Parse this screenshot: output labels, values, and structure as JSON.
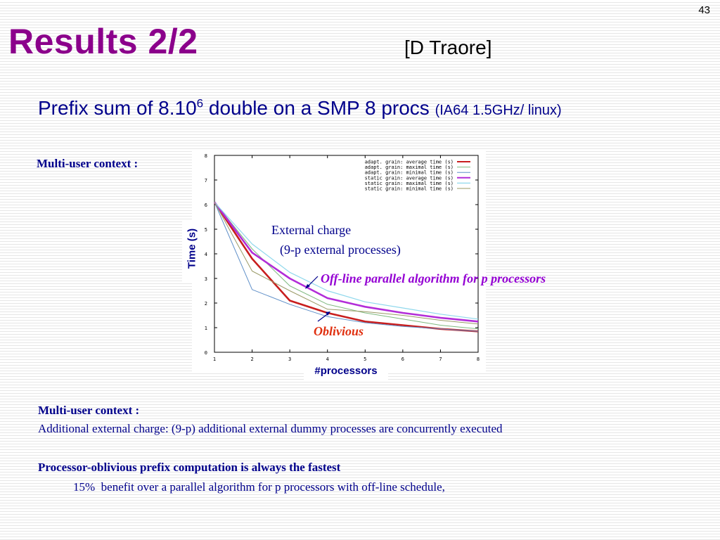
{
  "slide": {
    "page_number": "43",
    "title": "Results 2/2",
    "credit": "[D Traore]",
    "subtitle_main": "Prefix sum of 8.10",
    "subtitle_sup": "6",
    "subtitle_rest": " double on a SMP 8 procs ",
    "subtitle_small": "(IA64 1.5GHz/ linux)",
    "context_label": "Multi-user context",
    "context_colon": " :"
  },
  "annotations": {
    "external_line1": "External charge",
    "external_line2": "(9-p external processes)",
    "offline": "Off-line parallel algorithm for p processors",
    "oblivious": "Oblivious"
  },
  "bottom": {
    "context_label": "Multi-user context",
    "context_colon": " :",
    "description": "Additional external charge: (9-p) additional external dummy processes are concurrently executed",
    "conclusion": "Processor-oblivious prefix computation is always the fastest",
    "benefit": "15%  benefit over a parallel algorithm for p processors with off-line schedule,"
  },
  "chart_data": {
    "type": "line",
    "xlabel": "#processors",
    "ylabel": "Time (s)",
    "xlim": [
      1,
      8
    ],
    "ylim": [
      0,
      8
    ],
    "x_ticks": [
      1,
      2,
      3,
      4,
      5,
      6,
      7,
      8
    ],
    "y_ticks": [
      0,
      1,
      2,
      3,
      4,
      5,
      6,
      7,
      8
    ],
    "grid": false,
    "legend_position": "top-right",
    "x": [
      1,
      2,
      3,
      4,
      5,
      6,
      7,
      8
    ],
    "series": [
      {
        "name": "adapt. grain: average time (s)",
        "color": "#c81e1e",
        "width": 2.6,
        "values": [
          6.1,
          3.8,
          2.1,
          1.6,
          1.25,
          1.1,
          0.95,
          0.85
        ]
      },
      {
        "name": "adapt. grain: maximal time (s)",
        "color": "#7fb97f",
        "width": 1,
        "values": [
          6.1,
          4.2,
          2.7,
          1.95,
          1.6,
          1.35,
          1.1,
          0.95
        ]
      },
      {
        "name": "adapt. grain: minimal time (s)",
        "color": "#5f8fc8",
        "width": 1,
        "values": [
          6.1,
          2.55,
          1.95,
          1.45,
          1.2,
          1.05,
          0.95,
          0.85
        ]
      },
      {
        "name": "static grain: average time (s)",
        "color": "#b22dd8",
        "width": 2.6,
        "values": [
          6.1,
          4.05,
          3.0,
          2.2,
          1.85,
          1.6,
          1.4,
          1.25
        ]
      },
      {
        "name": "static grain: maximal time (s)",
        "color": "#8fd8ec",
        "width": 1.2,
        "values": [
          6.1,
          4.4,
          3.25,
          2.5,
          2.05,
          1.8,
          1.55,
          1.35
        ]
      },
      {
        "name": "static grain: minimal time (s)",
        "color": "#9a9a66",
        "width": 1,
        "values": [
          6.1,
          3.3,
          2.5,
          1.75,
          1.65,
          1.5,
          1.3,
          1.15
        ]
      }
    ]
  }
}
